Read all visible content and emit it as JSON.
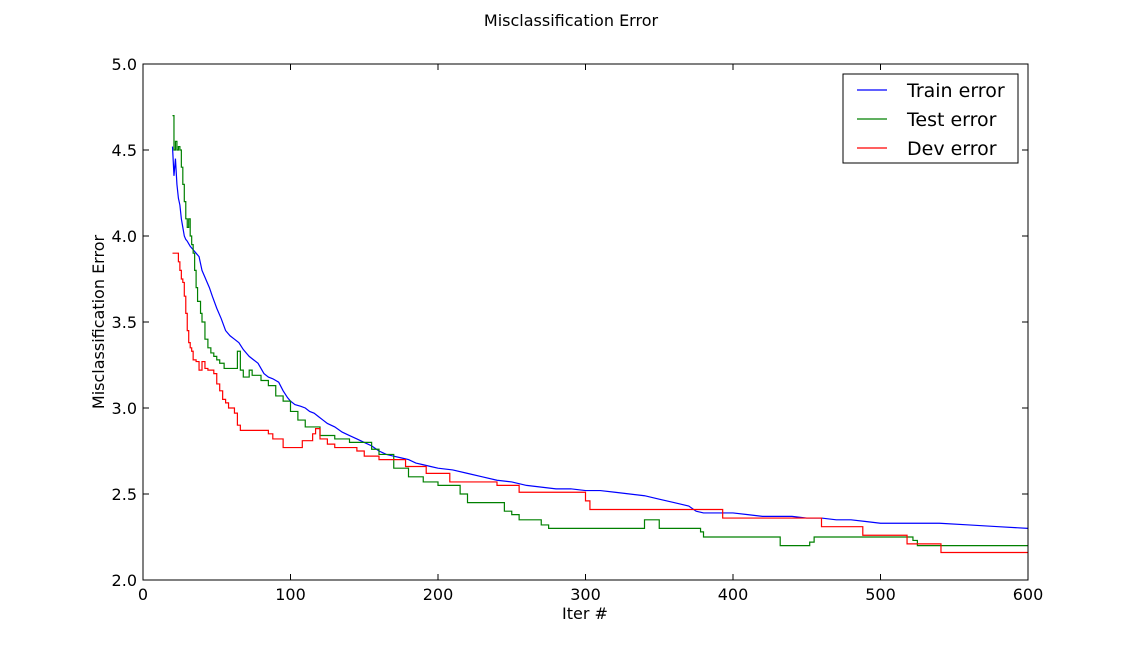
{
  "chart_data": {
    "type": "line",
    "title": "Misclassification Error",
    "xlabel": "Iter #",
    "ylabel": "Misclassification Error",
    "xlim": [
      0,
      600
    ],
    "ylim": [
      2.0,
      5.0
    ],
    "xticks": [
      "0",
      "100",
      "200",
      "300",
      "400",
      "500",
      "600"
    ],
    "yticks": [
      "2.0",
      "2.5",
      "3.0",
      "3.5",
      "4.0",
      "4.5",
      "5.0"
    ],
    "grid": false,
    "legend": "top-right",
    "series": [
      {
        "name": "Train error",
        "color": "#0000ff",
        "step": false,
        "x": [
          20,
          21,
          22,
          23,
          24,
          25,
          26,
          27,
          28,
          29,
          30,
          32,
          34,
          36,
          38,
          40,
          42,
          43,
          45,
          47,
          50,
          53,
          56,
          59,
          62,
          65,
          68,
          70,
          72,
          75,
          78,
          82,
          85,
          88,
          92,
          95,
          98,
          100,
          103,
          107,
          110,
          113,
          116,
          119,
          122,
          125,
          130,
          135,
          140,
          145,
          150,
          155,
          160,
          165,
          170,
          175,
          180,
          185,
          190,
          195,
          200,
          210,
          220,
          230,
          240,
          250,
          260,
          270,
          280,
          290,
          300,
          310,
          320,
          330,
          340,
          350,
          360,
          370,
          375,
          380,
          390,
          400,
          410,
          420,
          430,
          440,
          450,
          460,
          470,
          480,
          490,
          500,
          520,
          540,
          560,
          580,
          600
        ],
        "values": [
          4.52,
          4.35,
          4.45,
          4.3,
          4.22,
          4.18,
          4.1,
          4.05,
          4.0,
          3.98,
          3.97,
          3.94,
          3.92,
          3.9,
          3.88,
          3.8,
          3.76,
          3.74,
          3.7,
          3.65,
          3.58,
          3.52,
          3.45,
          3.42,
          3.4,
          3.38,
          3.34,
          3.32,
          3.3,
          3.28,
          3.26,
          3.2,
          3.18,
          3.17,
          3.15,
          3.1,
          3.06,
          3.04,
          3.02,
          3.01,
          3.0,
          2.98,
          2.97,
          2.95,
          2.93,
          2.91,
          2.89,
          2.86,
          2.84,
          2.82,
          2.8,
          2.78,
          2.75,
          2.73,
          2.72,
          2.71,
          2.7,
          2.68,
          2.67,
          2.66,
          2.65,
          2.64,
          2.62,
          2.6,
          2.58,
          2.57,
          2.55,
          2.54,
          2.53,
          2.53,
          2.52,
          2.52,
          2.51,
          2.5,
          2.49,
          2.47,
          2.45,
          2.43,
          2.4,
          2.39,
          2.39,
          2.39,
          2.38,
          2.37,
          2.37,
          2.37,
          2.36,
          2.36,
          2.35,
          2.35,
          2.34,
          2.33,
          2.33,
          2.33,
          2.32,
          2.31,
          2.3
        ]
      },
      {
        "name": "Test error",
        "color": "#008000",
        "step": true,
        "x": [
          20,
          21,
          22,
          23,
          24,
          25,
          26,
          27,
          28,
          29,
          30,
          31,
          32,
          33,
          34,
          35,
          36,
          37,
          38,
          39,
          40,
          42,
          44,
          46,
          48,
          50,
          52,
          55,
          58,
          62,
          64,
          66,
          68,
          70,
          72,
          74,
          80,
          85,
          90,
          95,
          100,
          105,
          110,
          120,
          130,
          140,
          155,
          160,
          170,
          180,
          190,
          200,
          215,
          220,
          245,
          250,
          255,
          270,
          275,
          300,
          340,
          343,
          350,
          353,
          378,
          380,
          400,
          430,
          432,
          452,
          455,
          510,
          522,
          525,
          560,
          600
        ],
        "values": [
          4.7,
          4.5,
          4.55,
          4.5,
          4.52,
          4.5,
          4.4,
          4.3,
          4.2,
          4.1,
          4.05,
          4.1,
          4.0,
          3.95,
          3.9,
          3.8,
          3.7,
          3.62,
          3.62,
          3.55,
          3.5,
          3.4,
          3.35,
          3.32,
          3.3,
          3.28,
          3.26,
          3.23,
          3.23,
          3.23,
          3.33,
          3.22,
          3.18,
          3.18,
          3.22,
          3.19,
          3.16,
          3.13,
          3.07,
          3.04,
          2.98,
          2.93,
          2.89,
          2.84,
          2.82,
          2.8,
          2.76,
          2.73,
          2.65,
          2.6,
          2.57,
          2.55,
          2.5,
          2.45,
          2.4,
          2.38,
          2.35,
          2.32,
          2.3,
          2.3,
          2.35,
          2.35,
          2.3,
          2.3,
          2.28,
          2.25,
          2.25,
          2.25,
          2.2,
          2.22,
          2.25,
          2.25,
          2.23,
          2.2,
          2.2,
          2.2
        ]
      },
      {
        "name": "Dev error",
        "color": "#ff0000",
        "step": true,
        "x": [
          20,
          24,
          25,
          26,
          27,
          28,
          29,
          30,
          31,
          32,
          33,
          34,
          36,
          38,
          40,
          42,
          44,
          46,
          48,
          50,
          52,
          54,
          56,
          58,
          62,
          64,
          66,
          70,
          75,
          80,
          85,
          88,
          95,
          100,
          108,
          115,
          117,
          120,
          125,
          130,
          145,
          150,
          160,
          175,
          178,
          192,
          208,
          240,
          255,
          300,
          303,
          380,
          390,
          393,
          458,
          460,
          485,
          488,
          516,
          518,
          540,
          541,
          600
        ],
        "values": [
          3.9,
          3.85,
          3.8,
          3.75,
          3.73,
          3.65,
          3.55,
          3.45,
          3.38,
          3.35,
          3.33,
          3.28,
          3.27,
          3.22,
          3.27,
          3.23,
          3.22,
          3.22,
          3.2,
          3.14,
          3.1,
          3.05,
          3.03,
          3.0,
          2.97,
          2.9,
          2.87,
          2.87,
          2.87,
          2.87,
          2.85,
          2.82,
          2.77,
          2.77,
          2.81,
          2.85,
          2.88,
          2.82,
          2.79,
          2.77,
          2.75,
          2.72,
          2.7,
          2.7,
          2.66,
          2.62,
          2.57,
          2.55,
          2.51,
          2.46,
          2.41,
          2.41,
          2.41,
          2.36,
          2.36,
          2.31,
          2.31,
          2.26,
          2.26,
          2.21,
          2.21,
          2.16,
          2.16
        ]
      }
    ]
  }
}
